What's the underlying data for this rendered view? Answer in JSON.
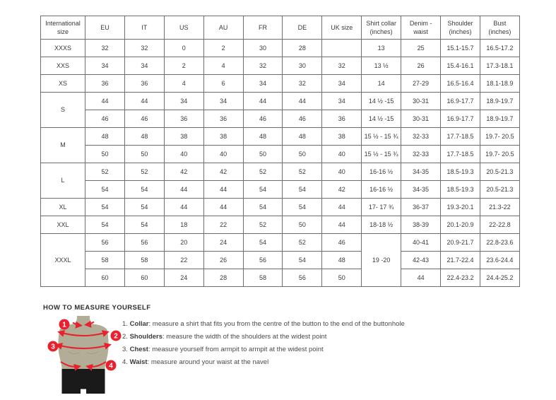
{
  "table": {
    "headers": [
      "International size",
      "EU",
      "IT",
      "US",
      "AU",
      "FR",
      "DE",
      "UK size",
      "Shirt collar (inches)",
      "Denim - waist",
      "Shoulder (inches)",
      "Bust (inches)"
    ],
    "rows": [
      {
        "cells": [
          {
            "t": "XXXS"
          },
          {
            "t": "32"
          },
          {
            "t": "32"
          },
          {
            "t": "0"
          },
          {
            "t": "2"
          },
          {
            "t": "30"
          },
          {
            "t": "28"
          },
          {
            "t": ""
          },
          {
            "t": "13"
          },
          {
            "t": "25"
          },
          {
            "t": "15.1-15.7"
          },
          {
            "t": "16.5-17.2"
          }
        ]
      },
      {
        "cells": [
          {
            "t": "XXS"
          },
          {
            "t": "34"
          },
          {
            "t": "34"
          },
          {
            "t": "2"
          },
          {
            "t": "4"
          },
          {
            "t": "32"
          },
          {
            "t": "30"
          },
          {
            "t": "32"
          },
          {
            "t": "13 ½"
          },
          {
            "t": "26"
          },
          {
            "t": "15.4-16.1"
          },
          {
            "t": "17.3-18.1"
          }
        ]
      },
      {
        "cells": [
          {
            "t": "XS"
          },
          {
            "t": "36"
          },
          {
            "t": "36"
          },
          {
            "t": "4"
          },
          {
            "t": "6"
          },
          {
            "t": "34"
          },
          {
            "t": "32"
          },
          {
            "t": "34"
          },
          {
            "t": "14"
          },
          {
            "t": "27-29"
          },
          {
            "t": "16.5-16.4"
          },
          {
            "t": "18.1-18.9"
          }
        ]
      },
      {
        "cells": [
          {
            "t": "S",
            "rs": 2
          },
          {
            "t": "44"
          },
          {
            "t": "44"
          },
          {
            "t": "34"
          },
          {
            "t": "34"
          },
          {
            "t": "44"
          },
          {
            "t": "44"
          },
          {
            "t": "34"
          },
          {
            "t": "14 ½ -15"
          },
          {
            "t": "30-31"
          },
          {
            "t": "16.9-17.7"
          },
          {
            "t": "18.9-19.7"
          }
        ]
      },
      {
        "cells": [
          {
            "t": "46"
          },
          {
            "t": "46"
          },
          {
            "t": "36"
          },
          {
            "t": "36"
          },
          {
            "t": "46"
          },
          {
            "t": "46"
          },
          {
            "t": "36"
          },
          {
            "t": "14 ½ -15"
          },
          {
            "t": "30-31"
          },
          {
            "t": "16.9-17.7"
          },
          {
            "t": "18.9-19.7"
          }
        ]
      },
      {
        "cells": [
          {
            "t": "M",
            "rs": 2
          },
          {
            "t": "48"
          },
          {
            "t": "48"
          },
          {
            "t": "38"
          },
          {
            "t": "38"
          },
          {
            "t": "48"
          },
          {
            "t": "48"
          },
          {
            "t": "38"
          },
          {
            "t": "15 ½ - 15 ¾"
          },
          {
            "t": "32-33"
          },
          {
            "t": "17.7-18.5"
          },
          {
            "t": "19.7- 20.5"
          }
        ]
      },
      {
        "cells": [
          {
            "t": "50"
          },
          {
            "t": "50"
          },
          {
            "t": "40"
          },
          {
            "t": "40"
          },
          {
            "t": "50"
          },
          {
            "t": "50"
          },
          {
            "t": "40"
          },
          {
            "t": "15 ½ - 15 ¾"
          },
          {
            "t": "32-33"
          },
          {
            "t": "17.7-18.5"
          },
          {
            "t": "19.7- 20.5"
          }
        ]
      },
      {
        "cells": [
          {
            "t": "L",
            "rs": 2
          },
          {
            "t": "52"
          },
          {
            "t": "52"
          },
          {
            "t": "42"
          },
          {
            "t": "42"
          },
          {
            "t": "52"
          },
          {
            "t": "52"
          },
          {
            "t": "40"
          },
          {
            "t": "16-16 ½"
          },
          {
            "t": "34-35"
          },
          {
            "t": "18.5-19.3"
          },
          {
            "t": "20.5-21.3"
          }
        ]
      },
      {
        "cells": [
          {
            "t": "54"
          },
          {
            "t": "54"
          },
          {
            "t": "44"
          },
          {
            "t": "44"
          },
          {
            "t": "54"
          },
          {
            "t": "54"
          },
          {
            "t": "42"
          },
          {
            "t": "16-16 ½"
          },
          {
            "t": "34-35"
          },
          {
            "t": "18.5-19.3"
          },
          {
            "t": "20.5-21.3"
          }
        ]
      },
      {
        "cells": [
          {
            "t": "XL"
          },
          {
            "t": "54"
          },
          {
            "t": "54"
          },
          {
            "t": "44"
          },
          {
            "t": "44"
          },
          {
            "t": "54"
          },
          {
            "t": "54"
          },
          {
            "t": "44"
          },
          {
            "t": "17- 17 ¾"
          },
          {
            "t": "36-37"
          },
          {
            "t": "19.3-20.1"
          },
          {
            "t": "21.3-22"
          }
        ]
      },
      {
        "cells": [
          {
            "t": "XXL"
          },
          {
            "t": "54"
          },
          {
            "t": "54"
          },
          {
            "t": "18"
          },
          {
            "t": "22"
          },
          {
            "t": "52"
          },
          {
            "t": "50"
          },
          {
            "t": "44"
          },
          {
            "t": "18-18 ½"
          },
          {
            "t": "38-39"
          },
          {
            "t": "20.1-20.9"
          },
          {
            "t": "22-22.8"
          }
        ]
      },
      {
        "cells": [
          {
            "t": "XXXL",
            "rs": 3
          },
          {
            "t": "56"
          },
          {
            "t": "56"
          },
          {
            "t": "20"
          },
          {
            "t": "24"
          },
          {
            "t": "54"
          },
          {
            "t": "52"
          },
          {
            "t": "46"
          },
          {
            "t": "19 -20",
            "rs": 3
          },
          {
            "t": "40-41"
          },
          {
            "t": "20.9-21.7"
          },
          {
            "t": "22.8-23.6"
          }
        ]
      },
      {
        "cells": [
          {
            "t": "58"
          },
          {
            "t": "58"
          },
          {
            "t": "22"
          },
          {
            "t": "26"
          },
          {
            "t": "56"
          },
          {
            "t": "54"
          },
          {
            "t": "48"
          },
          {
            "t": "42-43"
          },
          {
            "t": "21.7-22.4"
          },
          {
            "t": "23.6-24.4"
          }
        ]
      },
      {
        "cells": [
          {
            "t": "60"
          },
          {
            "t": "60"
          },
          {
            "t": "24"
          },
          {
            "t": "28"
          },
          {
            "t": "58"
          },
          {
            "t": "56"
          },
          {
            "t": "50"
          },
          {
            "t": "44"
          },
          {
            "t": "22.4-23.2"
          },
          {
            "t": "24.4-25.2"
          }
        ]
      }
    ]
  },
  "measure": {
    "title": "HOW TO MEASURE YOURSELF",
    "steps": [
      {
        "num": "1.",
        "label": "Collar",
        "text": ": measure a shirt that fits you from the centre of the button to the end of the buttonhole"
      },
      {
        "num": "2.",
        "label": "Shoulders",
        "text": ": measure the width of the shoulders at the widest point"
      },
      {
        "num": "3.",
        "label": "Chest",
        "text": ": measure yourself from armpit to armpit at the widest point"
      },
      {
        "num": "4.",
        "label": "Waist",
        "text": ": measure around your waist at the navel"
      }
    ],
    "figure": {
      "badges": [
        "1",
        "2",
        "3",
        "4"
      ]
    }
  },
  "colors": {
    "accent_red": "#e8212e",
    "mannequin_tan": "#b2ad97",
    "shorts_black": "#1a1a1a",
    "table_border": "#6e6e6e",
    "text_dark": "#3a3a3a"
  }
}
